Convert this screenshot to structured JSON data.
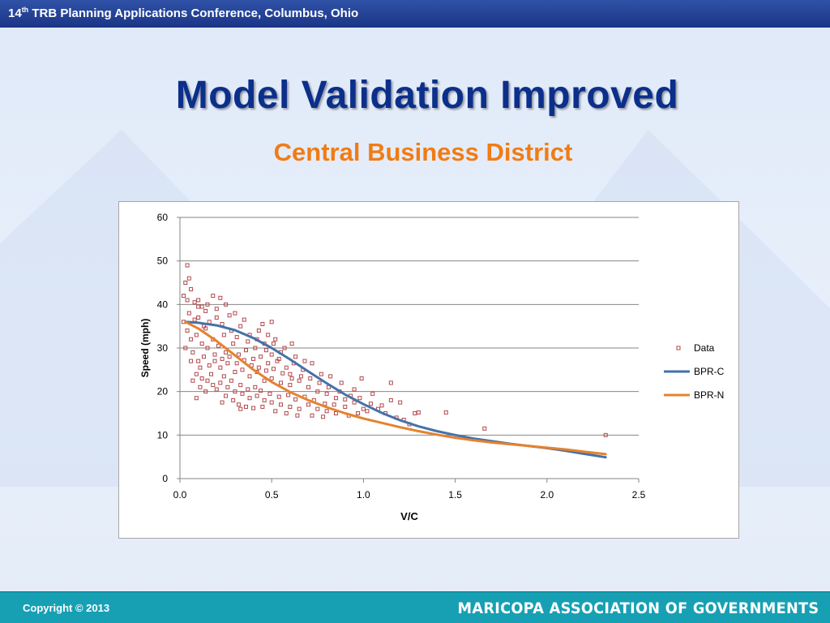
{
  "header": {
    "ordinal_number": "14",
    "ordinal_suffix": "th",
    "text": " TRB Planning Applications Conference, Columbus, Ohio"
  },
  "title": "Model Validation Improved",
  "subtitle": "Central Business District",
  "footer": {
    "copyright": "Copyright © 2013",
    "organization": "MARICOPA ASSOCIATION OF GOVERNMENTS"
  },
  "colors": {
    "header": "#1f3c94",
    "title": "#0b2f8a",
    "subtitle": "#f07c14",
    "footer": "#17a0b4",
    "data": "#b3474a",
    "bpr_c": "#4472a8",
    "bpr_n": "#e5822e"
  },
  "chart_data": {
    "type": "scatter",
    "xlabel": "V/C",
    "ylabel": "Speed (mph)",
    "xlim": [
      0,
      2.5
    ],
    "ylim": [
      0,
      60
    ],
    "x_ticks": [
      "0.0",
      "0.5",
      "1.0",
      "1.5",
      "2.0",
      "2.5"
    ],
    "y_ticks": [
      "0",
      "10",
      "20",
      "30",
      "40",
      "50",
      "60"
    ],
    "grid": "horizontal",
    "legend_position": "right",
    "series": [
      {
        "name": "Data",
        "type": "scatter",
        "color": "#b3474a",
        "marker": "square-hollow",
        "points": [
          [
            0.04,
            49
          ],
          [
            0.05,
            46
          ],
          [
            0.03,
            45
          ],
          [
            0.06,
            43.5
          ],
          [
            0.04,
            41
          ],
          [
            0.02,
            42
          ],
          [
            0.08,
            40.5
          ],
          [
            0.1,
            41
          ],
          [
            0.12,
            39.5
          ],
          [
            0.15,
            40
          ],
          [
            0.18,
            42
          ],
          [
            0.22,
            41.5
          ],
          [
            0.25,
            40
          ],
          [
            0.3,
            38
          ],
          [
            0.05,
            38
          ],
          [
            0.08,
            36.5
          ],
          [
            0.1,
            37
          ],
          [
            0.13,
            35
          ],
          [
            0.16,
            36
          ],
          [
            0.2,
            37
          ],
          [
            0.23,
            35.5
          ],
          [
            0.28,
            34
          ],
          [
            0.33,
            35
          ],
          [
            0.38,
            33
          ],
          [
            0.42,
            32
          ],
          [
            0.46,
            31
          ],
          [
            0.51,
            31
          ],
          [
            0.55,
            29
          ],
          [
            0.04,
            34
          ],
          [
            0.06,
            32
          ],
          [
            0.09,
            33
          ],
          [
            0.12,
            31
          ],
          [
            0.15,
            30
          ],
          [
            0.18,
            32
          ],
          [
            0.21,
            30.5
          ],
          [
            0.25,
            29
          ],
          [
            0.29,
            31
          ],
          [
            0.32,
            28.5
          ],
          [
            0.36,
            29.5
          ],
          [
            0.4,
            27.5
          ],
          [
            0.44,
            28
          ],
          [
            0.48,
            26.5
          ],
          [
            0.53,
            27
          ],
          [
            0.58,
            25.5
          ],
          [
            0.62,
            26.5
          ],
          [
            0.67,
            25
          ],
          [
            0.07,
            29
          ],
          [
            0.1,
            27
          ],
          [
            0.13,
            28
          ],
          [
            0.16,
            26
          ],
          [
            0.19,
            27
          ],
          [
            0.22,
            25.5
          ],
          [
            0.26,
            26.5
          ],
          [
            0.3,
            24.5
          ],
          [
            0.34,
            25
          ],
          [
            0.38,
            23.5
          ],
          [
            0.42,
            24.5
          ],
          [
            0.46,
            22.5
          ],
          [
            0.5,
            23
          ],
          [
            0.55,
            22
          ],
          [
            0.6,
            21.5
          ],
          [
            0.65,
            22.5
          ],
          [
            0.7,
            21
          ],
          [
            0.75,
            20
          ],
          [
            0.8,
            19.5
          ],
          [
            0.85,
            18.5
          ],
          [
            0.09,
            24
          ],
          [
            0.12,
            23
          ],
          [
            0.15,
            22.5
          ],
          [
            0.18,
            21.5
          ],
          [
            0.22,
            22
          ],
          [
            0.26,
            21
          ],
          [
            0.3,
            20
          ],
          [
            0.34,
            19.5
          ],
          [
            0.38,
            18.5
          ],
          [
            0.42,
            19
          ],
          [
            0.46,
            18
          ],
          [
            0.5,
            17.5
          ],
          [
            0.55,
            17
          ],
          [
            0.6,
            16.5
          ],
          [
            0.65,
            16
          ],
          [
            0.7,
            17
          ],
          [
            0.75,
            16
          ],
          [
            0.8,
            15.5
          ],
          [
            0.85,
            15
          ],
          [
            0.9,
            16.5
          ],
          [
            0.95,
            17.5
          ],
          [
            1.0,
            16
          ],
          [
            0.09,
            18.5
          ],
          [
            0.2,
            20.5
          ],
          [
            0.25,
            19
          ],
          [
            0.32,
            17
          ],
          [
            0.36,
            16.5
          ],
          [
            0.4,
            16.2
          ],
          [
            0.45,
            16.5
          ],
          [
            0.52,
            15.5
          ],
          [
            0.58,
            15
          ],
          [
            0.64,
            14.5
          ],
          [
            0.72,
            14.5
          ],
          [
            0.78,
            14.2
          ],
          [
            0.92,
            14.5
          ],
          [
            0.97,
            15
          ],
          [
            1.02,
            15.5
          ],
          [
            1.08,
            16
          ],
          [
            1.12,
            15
          ],
          [
            1.18,
            14
          ],
          [
            1.22,
            13.5
          ],
          [
            1.25,
            12.5
          ],
          [
            1.28,
            15
          ],
          [
            1.15,
            18
          ],
          [
            1.2,
            17.5
          ],
          [
            1.05,
            19.5
          ],
          [
            0.95,
            20.5
          ],
          [
            0.88,
            22
          ],
          [
            0.82,
            23.5
          ],
          [
            0.77,
            24
          ],
          [
            0.72,
            26.5
          ],
          [
            0.68,
            27
          ],
          [
            0.63,
            28
          ],
          [
            0.57,
            30
          ],
          [
            0.52,
            32
          ],
          [
            0.48,
            33
          ],
          [
            0.43,
            34
          ],
          [
            0.35,
            36.5
          ],
          [
            0.27,
            37.5
          ],
          [
            0.2,
            39
          ],
          [
            0.14,
            38.5
          ],
          [
            0.1,
            39.5
          ],
          [
            0.02,
            36
          ],
          [
            0.03,
            30
          ],
          [
            0.06,
            27
          ],
          [
            0.11,
            25.5
          ],
          [
            0.17,
            24
          ],
          [
            0.24,
            23.5
          ],
          [
            0.28,
            22.5
          ],
          [
            0.33,
            21.5
          ],
          [
            0.37,
            20.5
          ],
          [
            0.41,
            21
          ],
          [
            0.44,
            20.2
          ],
          [
            0.49,
            19.5
          ],
          [
            0.54,
            18.8
          ],
          [
            0.59,
            19.2
          ],
          [
            0.63,
            18.2
          ],
          [
            0.68,
            18.8
          ],
          [
            0.73,
            18
          ],
          [
            0.79,
            17.2
          ],
          [
            0.84,
            17
          ],
          [
            0.9,
            18.2
          ],
          [
            0.99,
            23
          ],
          [
            1.15,
            22
          ],
          [
            1.3,
            15.2
          ],
          [
            1.45,
            15.2
          ],
          [
            1.66,
            11.5
          ],
          [
            2.32,
            10
          ],
          [
            0.14,
            34.5
          ],
          [
            0.24,
            33
          ],
          [
            0.31,
            32.5
          ],
          [
            0.37,
            31.5
          ],
          [
            0.41,
            30
          ],
          [
            0.47,
            29.5
          ],
          [
            0.5,
            28.5
          ],
          [
            0.54,
            27.5
          ],
          [
            0.6,
            24
          ],
          [
            0.66,
            23.5
          ],
          [
            0.71,
            23
          ],
          [
            0.76,
            22
          ],
          [
            0.81,
            21
          ],
          [
            0.87,
            20
          ],
          [
            0.93,
            19
          ],
          [
            0.98,
            18.5
          ],
          [
            1.04,
            17.2
          ],
          [
            1.1,
            16.8
          ],
          [
            0.19,
            28.5
          ],
          [
            0.23,
            27.5
          ],
          [
            0.27,
            28
          ],
          [
            0.31,
            26.5
          ],
          [
            0.35,
            27.2
          ],
          [
            0.39,
            26
          ],
          [
            0.43,
            25.5
          ],
          [
            0.47,
            24.8
          ],
          [
            0.51,
            25.2
          ],
          [
            0.56,
            24.2
          ],
          [
            0.61,
            23
          ],
          [
            0.07,
            22.5
          ],
          [
            0.11,
            21
          ],
          [
            0.14,
            20
          ],
          [
            0.23,
            17.5
          ],
          [
            0.29,
            18
          ],
          [
            0.33,
            16
          ],
          [
            0.61,
            31
          ],
          [
            0.5,
            36
          ],
          [
            0.45,
            35.5
          ]
        ]
      },
      {
        "name": "BPR-C",
        "type": "line",
        "color": "#4472a8",
        "points": [
          [
            0.03,
            36
          ],
          [
            0.1,
            35.8
          ],
          [
            0.2,
            35.2
          ],
          [
            0.3,
            34.1
          ],
          [
            0.4,
            32.3
          ],
          [
            0.5,
            30
          ],
          [
            0.6,
            27.4
          ],
          [
            0.7,
            24.6
          ],
          [
            0.8,
            21.9
          ],
          [
            0.9,
            19.3
          ],
          [
            1.0,
            17.1
          ],
          [
            1.1,
            15.1
          ],
          [
            1.2,
            13.4
          ],
          [
            1.3,
            12
          ],
          [
            1.4,
            10.9
          ],
          [
            1.5,
            10
          ],
          [
            1.6,
            9.2
          ],
          [
            1.7,
            8.6
          ],
          [
            1.8,
            8
          ],
          [
            1.9,
            7.5
          ],
          [
            2.0,
            7
          ],
          [
            2.1,
            6.4
          ],
          [
            2.2,
            5.7
          ],
          [
            2.32,
            4.9
          ]
        ]
      },
      {
        "name": "BPR-N",
        "type": "line",
        "color": "#e5822e",
        "points": [
          [
            0.03,
            36
          ],
          [
            0.1,
            34.5
          ],
          [
            0.2,
            31.6
          ],
          [
            0.3,
            28.3
          ],
          [
            0.4,
            25
          ],
          [
            0.5,
            22.2
          ],
          [
            0.6,
            19.9
          ],
          [
            0.7,
            18
          ],
          [
            0.8,
            16.4
          ],
          [
            0.9,
            15
          ],
          [
            1.0,
            13.8
          ],
          [
            1.1,
            12.8
          ],
          [
            1.2,
            11.8
          ],
          [
            1.3,
            10.9
          ],
          [
            1.4,
            10.1
          ],
          [
            1.5,
            9.4
          ],
          [
            1.6,
            8.8
          ],
          [
            1.7,
            8.3
          ],
          [
            1.8,
            7.9
          ],
          [
            1.9,
            7.5
          ],
          [
            2.0,
            7.1
          ],
          [
            2.1,
            6.7
          ],
          [
            2.2,
            6.2
          ],
          [
            2.32,
            5.6
          ]
        ]
      }
    ]
  }
}
